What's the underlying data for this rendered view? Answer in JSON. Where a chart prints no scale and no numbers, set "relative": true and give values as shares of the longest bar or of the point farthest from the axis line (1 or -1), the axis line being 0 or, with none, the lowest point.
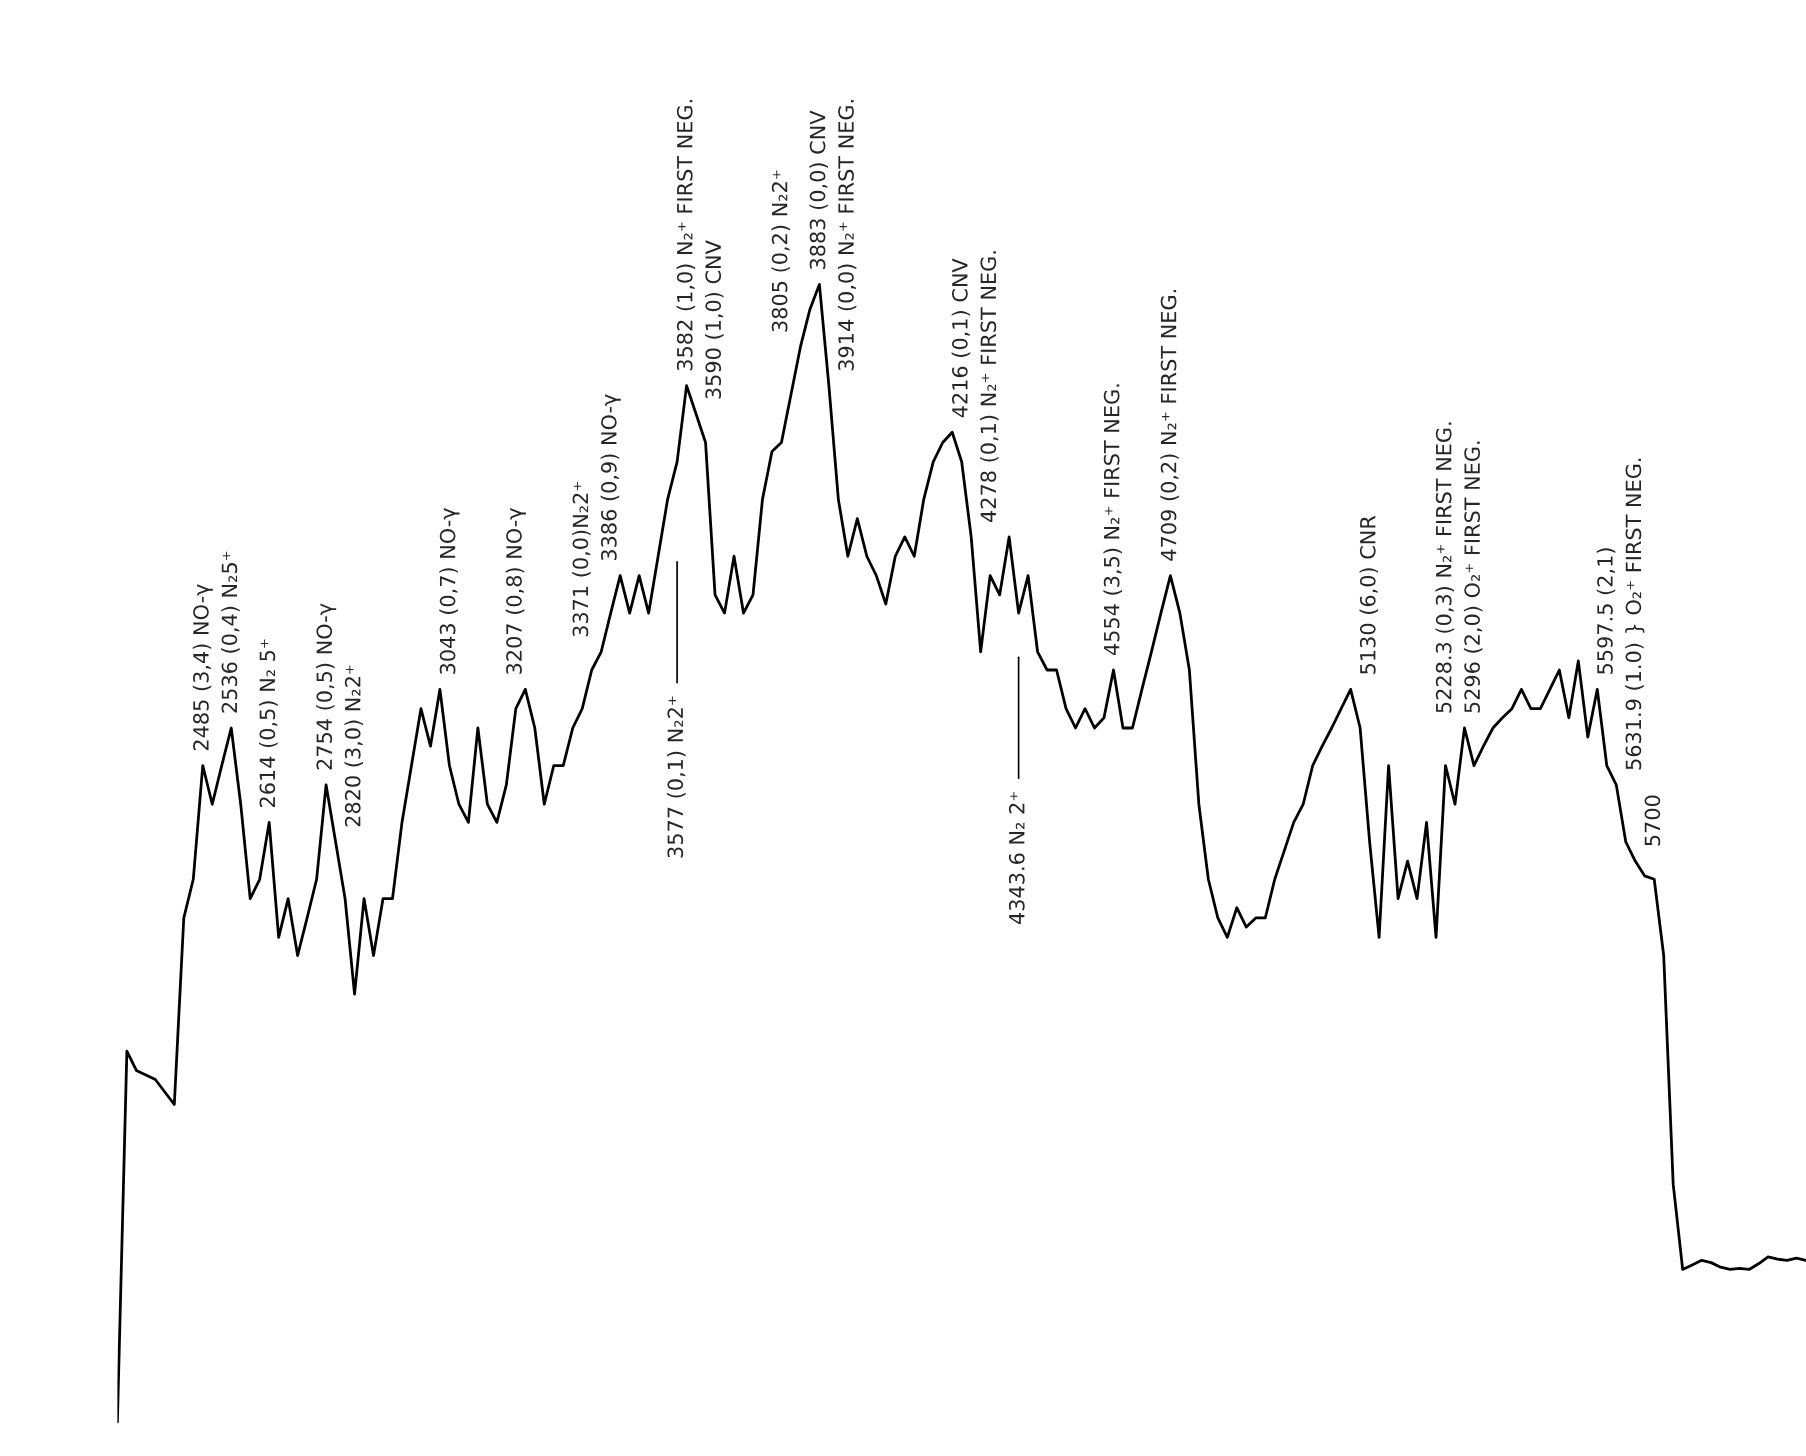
{
  "chart_data": {
    "type": "line",
    "relative": true,
    "tick_labels": false,
    "marker": "none",
    "line_style": "solid",
    "categories": [
      null,
      null,
      null,
      null,
      null,
      null,
      null,
      null,
      null,
      null,
      null,
      null,
      null,
      null,
      null,
      null,
      null,
      null,
      null,
      null,
      null,
      null,
      null,
      null,
      null,
      null,
      null,
      null,
      null,
      null,
      null,
      null,
      null,
      null,
      null,
      null,
      null,
      null,
      null,
      null,
      null,
      null,
      null,
      null,
      null,
      null,
      null,
      null,
      null,
      null,
      null,
      null,
      null,
      null,
      null,
      null,
      null,
      null,
      null,
      null,
      null,
      null,
      null,
      null,
      null,
      null,
      null,
      null,
      null,
      null,
      null,
      null,
      null,
      null,
      null,
      null,
      null,
      null,
      null,
      null,
      null,
      null,
      null,
      null,
      null,
      null,
      null,
      null,
      null,
      null,
      null,
      null,
      null,
      null,
      null,
      null,
      null,
      null,
      null,
      null,
      null,
      null,
      null,
      null,
      null,
      null,
      null,
      null,
      null,
      null,
      null,
      null,
      null,
      null,
      null,
      null,
      null,
      null,
      null,
      null,
      null,
      null,
      null,
      null,
      null,
      null,
      null,
      null,
      null,
      null,
      null,
      null,
      null,
      null,
      null,
      null,
      null,
      null,
      null,
      null,
      null,
      null,
      null,
      null,
      null,
      null,
      null,
      null,
      null,
      null,
      null,
      null,
      null,
      null,
      null,
      null,
      null,
      null,
      null,
      null,
      null,
      null,
      null,
      null,
      null,
      null,
      null,
      null,
      null,
      null,
      null,
      null,
      null,
      null,
      null,
      null,
      null,
      null,
      null
    ],
    "series": [
      {
        "color": "#000000",
        "values": [
          0,
          0.326,
          0.309,
          0.305,
          0.301,
          0.29,
          0.279,
          0.443,
          0.477,
          0.577,
          0.543,
          0.577,
          0.61,
          0.543,
          0.46,
          0.477,
          0.527,
          0.426,
          0.46,
          0.41,
          0.443,
          0.477,
          0.56,
          0.51,
          0.46,
          0.376,
          0.46,
          0.41,
          0.46,
          0.46,
          0.527,
          0.577,
          0.627,
          0.594,
          0.644,
          0.577,
          0.543,
          0.527,
          0.61,
          0.543,
          0.527,
          0.56,
          0.627,
          0.644,
          0.61,
          0.543,
          0.577,
          0.577,
          0.61,
          0.627,
          0.661,
          0.677,
          0.711,
          0.744,
          0.711,
          0.744,
          0.711,
          0.761,
          0.811,
          0.844,
          0.911,
          0.886,
          0.861,
          0.727,
          0.711,
          0.761,
          0.711,
          0.727,
          0.811,
          0.853,
          0.861,
          0.903,
          0.945,
          0.978,
          1.0,
          0.911,
          0.811,
          0.761,
          0.794,
          0.761,
          0.744,
          0.719,
          0.761,
          0.778,
          0.761,
          0.811,
          0.844,
          0.861,
          0.87,
          0.844,
          0.778,
          0.677,
          0.744,
          0.727,
          0.778,
          0.711,
          0.744,
          0.677,
          0.661,
          0.661,
          0.627,
          0.61,
          0.627,
          0.61,
          0.619,
          0.661,
          0.61,
          0.61,
          0.644,
          0.677,
          0.711,
          0.744,
          0.711,
          0.661,
          0.543,
          0.477,
          0.443,
          0.426,
          0.452,
          0.435,
          0.443,
          0.443,
          0.477,
          0.502,
          0.527,
          0.543,
          0.577,
          0.594,
          0.61,
          0.627,
          0.644,
          0.61,
          0.51,
          0.426,
          0.577,
          0.46,
          0.493,
          0.46,
          0.527,
          0.426,
          0.577,
          0.543,
          0.61,
          0.577,
          0.594,
          0.61,
          0.619,
          0.627,
          0.644,
          0.627,
          0.627,
          0.644,
          0.661,
          0.619,
          0.669,
          0.602,
          0.644,
          0.577,
          0.56,
          0.51,
          0.493,
          0.48,
          0.477,
          0.41,
          0.209,
          0.134,
          0.138,
          0.142,
          0.14,
          0.136,
          0.134,
          0.135,
          0.134,
          0.139,
          0.145,
          0.143,
          0.142,
          0.144,
          0.142
        ]
      }
    ],
    "annotations": [
      "2485 (3,4) NO-γ",
      "2536 (0,4) N₂5⁺",
      "2614 (0,5) N₂ 5⁺",
      "2754 (0,5) NO-γ",
      "2820 (3,0) N₂2⁺",
      "3043 (0,7) NO-γ",
      "3207 (0,8) NO-γ",
      "3371 (0,0)N₂2⁺",
      "3386 (0,9) NO-γ",
      "3577 (0,1) N₂2⁺",
      "3582 (1,0) N₂⁺ FIRST NEG.",
      "3590 (1,0) CNV",
      "3805 (0,2) N₂2⁺",
      "3883 (0,0) CNV",
      "3914 (0,0) N₂⁺ FIRST NEG.",
      "4216 (0,1) CNV",
      "4278 (0,1) N₂⁺ FIRST NEG.",
      "4343.6 N₂ 2⁺",
      "4554 (3,5) N₂⁺ FIRST NEG.",
      "4709 (0,2) N₂⁺ FIRST NEG.",
      "5130 (6,0) CNR",
      "5228.3 (0,3) N₂⁺ FIRST NEG.",
      "5296 (2,0) O₂⁺ FIRST NEG.",
      "5597.5 (2,1)",
      "5631.9 (1.0) } O₂⁺ FIRST NEG.",
      "5700"
    ]
  }
}
